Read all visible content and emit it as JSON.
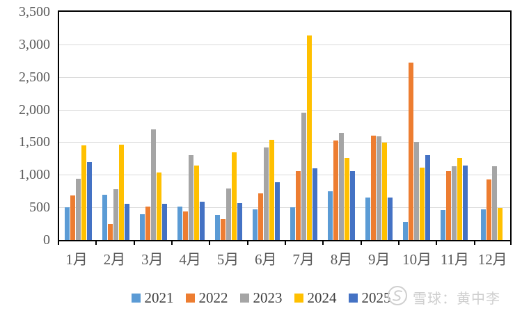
{
  "chart_data": {
    "type": "bar",
    "title": "",
    "xlabel": "",
    "ylabel": "",
    "categories": [
      "1月",
      "2月",
      "3月",
      "4月",
      "5月",
      "6月",
      "7月",
      "8月",
      "9月",
      "10月",
      "11月",
      "12月"
    ],
    "series": [
      {
        "name": "2021",
        "color": "#5B9BD5",
        "values": [
          500,
          690,
          400,
          510,
          380,
          470,
          500,
          750,
          650,
          280,
          460,
          470
        ]
      },
      {
        "name": "2022",
        "color": "#ED7D31",
        "values": [
          680,
          250,
          510,
          440,
          320,
          710,
          1060,
          1530,
          1600,
          2720,
          1060,
          930
        ]
      },
      {
        "name": "2023",
        "color": "#A5A5A5",
        "values": [
          940,
          780,
          1700,
          1300,
          790,
          1420,
          1950,
          1640,
          1590,
          1510,
          1130,
          1130
        ]
      },
      {
        "name": "2024",
        "color": "#FFC000",
        "values": [
          1450,
          1460,
          1030,
          1140,
          1350,
          1540,
          3140,
          1260,
          1490,
          1110,
          1260,
          490
        ]
      },
      {
        "name": "2025",
        "color": "#4472C4",
        "values": [
          1200,
          560,
          550,
          590,
          570,
          890,
          1100,
          1060,
          650,
          1300,
          1140,
          null
        ]
      }
    ],
    "ylim": [
      0,
      3500
    ],
    "y_tick_step": 500,
    "y_tick_labels": [
      "0",
      "500",
      "1,000",
      "1,500",
      "2,000",
      "2,500",
      "3,000",
      "3,500"
    ],
    "grid": "horizontal",
    "gridline_color": "#d9d9d9",
    "plot_border_color": "#000000",
    "axis_label_color": "#595959",
    "legend_position": "bottom",
    "legend_text_color": "#404040"
  },
  "watermark": {
    "logo": "snowball-circle-icon",
    "text": "雪球：黄中李",
    "color": "#cfcfcf"
  }
}
